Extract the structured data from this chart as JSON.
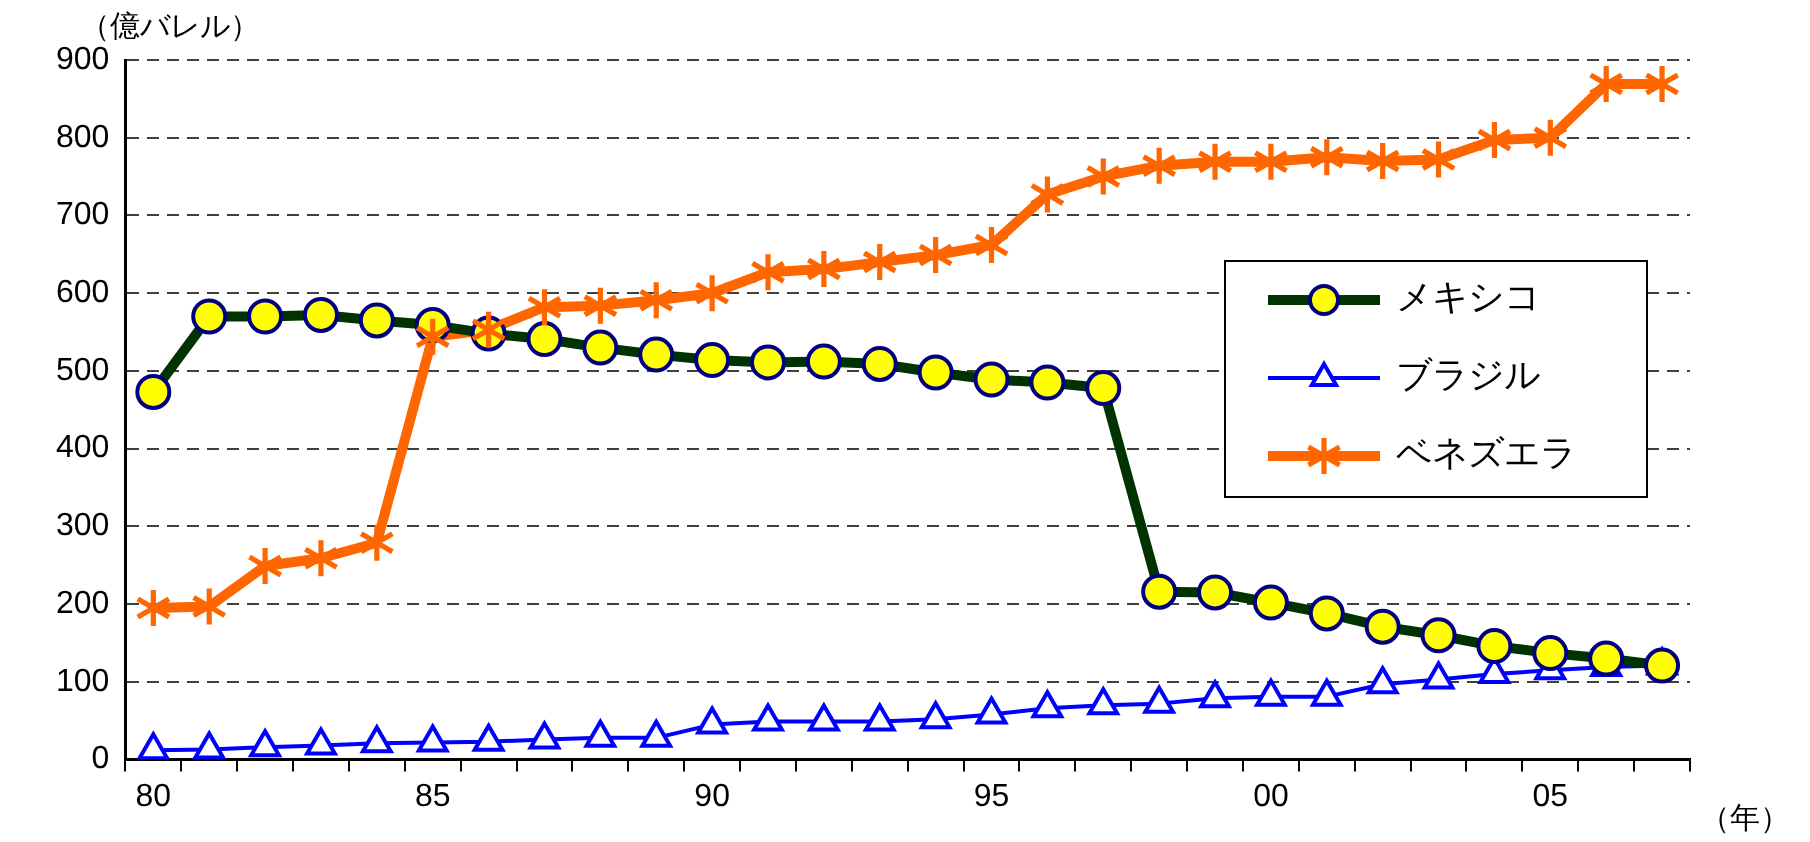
{
  "chart_data": {
    "type": "line",
    "xlabel": "（年）",
    "ylabel": "（億バレル）",
    "categories": [
      "80",
      null,
      null,
      null,
      null,
      "85",
      null,
      null,
      null,
      null,
      "90",
      null,
      null,
      null,
      null,
      "95",
      null,
      null,
      null,
      null,
      "00",
      null,
      null,
      null,
      null,
      "05",
      null,
      null
    ],
    "series": [
      {
        "name": "メキシコ",
        "color": "#003300",
        "marker": "circle",
        "values": [
          473,
          570,
          570,
          572,
          565,
          559,
          548,
          541,
          530,
          521,
          514,
          511,
          512,
          509,
          498,
          489,
          485,
          478,
          216,
          215,
          202,
          188,
          171,
          160,
          146,
          137,
          130,
          121
        ]
      },
      {
        "name": "ブラジル",
        "color": "#0000ff",
        "marker": "triangle",
        "values": [
          12,
          13,
          16,
          18,
          21,
          22,
          23,
          26,
          28,
          28,
          45,
          49,
          49,
          49,
          52,
          58,
          66,
          70,
          72,
          79,
          81,
          81,
          97,
          103,
          110,
          115,
          119,
          121
        ]
      },
      {
        "name": "ベネズエラ",
        "color": "#ff6600",
        "marker": "cross",
        "values": [
          195,
          197,
          249,
          259,
          279,
          544,
          553,
          582,
          584,
          591,
          600,
          627,
          631,
          640,
          649,
          662,
          727,
          750,
          764,
          769,
          769,
          775,
          770,
          772,
          797,
          800,
          869,
          869
        ]
      }
    ],
    "ylim": [
      0,
      900
    ],
    "yticks": [
      0,
      100,
      200,
      300,
      400,
      500,
      600,
      700,
      800,
      900
    ],
    "grid": "y",
    "legend": "right",
    "line_style": "solid"
  }
}
